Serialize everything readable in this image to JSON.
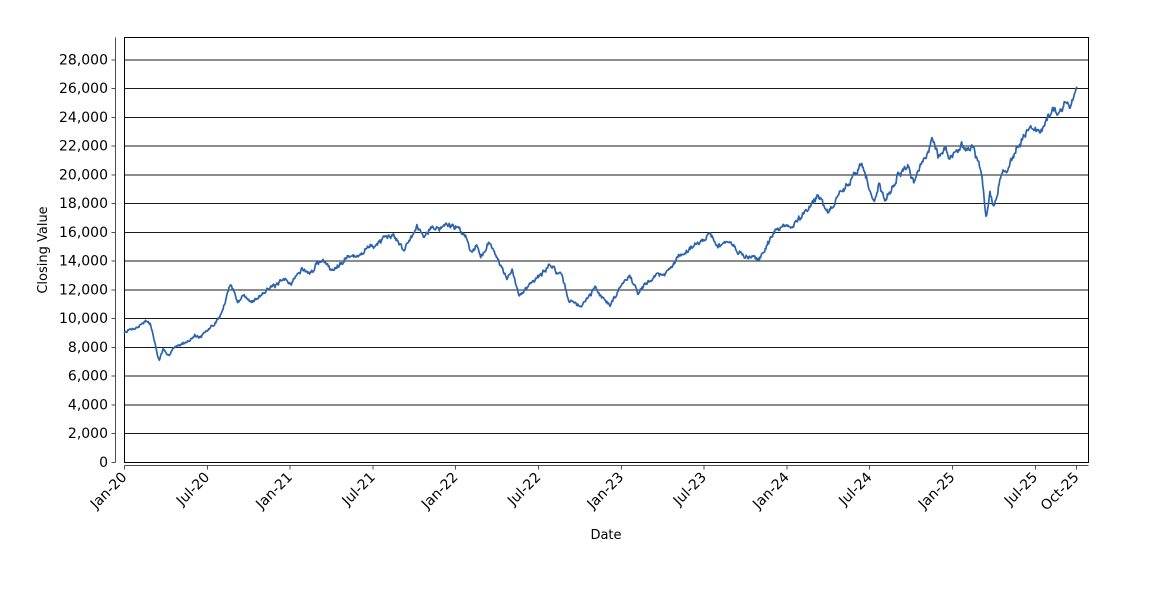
{
  "chart_data": {
    "type": "line",
    "xlabel": "Date",
    "ylabel": "Closing Value",
    "legend": "none",
    "grid": "horizontal-only",
    "background": "#ffffff",
    "plot_border_color": "#000000",
    "gridline_color": "#1a1a1a",
    "axis_line_color": "#4d4d4d",
    "x_tick_labels": [
      "Jan-20",
      "Jul-20",
      "Jan-21",
      "Jul-21",
      "Jan-22",
      "Jul-22",
      "Jan-23",
      "Jul-23",
      "Jan-24",
      "Jul-24",
      "Jan-25",
      "Jul-25",
      "Oct-25"
    ],
    "x_tick_months": [
      0,
      6,
      12,
      18,
      24,
      30,
      36,
      42,
      48,
      54,
      60,
      66,
      69
    ],
    "y_tick_values": [
      0,
      2000,
      4000,
      6000,
      8000,
      10000,
      12000,
      14000,
      16000,
      18000,
      20000,
      22000,
      24000,
      26000,
      28000
    ],
    "y_tick_labels": [
      "0",
      "2,000",
      "4,000",
      "6,000",
      "8,000",
      "10,000",
      "12,000",
      "14,000",
      "16,000",
      "18,000",
      "20,000",
      "22,000",
      "24,000",
      "26,000",
      "28,000"
    ],
    "ylim": [
      0,
      29560
    ],
    "xlim_months": [
      0,
      69.9
    ],
    "series": [
      {
        "name": "Closing Value",
        "color": "#2C63AD",
        "keypoints_month_value": [
          [
            0,
            9050
          ],
          [
            0.5,
            9200
          ],
          [
            1,
            9400
          ],
          [
            1.5,
            9850
          ],
          [
            1.9,
            9500
          ],
          [
            2.15,
            8500
          ],
          [
            2.5,
            7050
          ],
          [
            2.8,
            7850
          ],
          [
            3.1,
            7300
          ],
          [
            3.5,
            7950
          ],
          [
            4,
            8250
          ],
          [
            4.6,
            8450
          ],
          [
            5.1,
            8800
          ],
          [
            5.5,
            8650
          ],
          [
            6,
            9150
          ],
          [
            6.6,
            9700
          ],
          [
            7,
            10350
          ],
          [
            7.4,
            11500
          ],
          [
            7.7,
            12550
          ],
          [
            8.2,
            11150
          ],
          [
            8.6,
            11700
          ],
          [
            9.1,
            11150
          ],
          [
            9.6,
            11450
          ],
          [
            10.3,
            12150
          ],
          [
            11,
            12300
          ],
          [
            11.6,
            12750
          ],
          [
            12.1,
            12550
          ],
          [
            12.9,
            13500
          ],
          [
            13.4,
            13100
          ],
          [
            14.3,
            14200
          ],
          [
            15,
            13400
          ],
          [
            15.6,
            13950
          ],
          [
            16.2,
            14400
          ],
          [
            16.8,
            14250
          ],
          [
            17.5,
            14950
          ],
          [
            18.3,
            15250
          ],
          [
            19,
            15450
          ],
          [
            19.6,
            15700
          ],
          [
            20.3,
            14850
          ],
          [
            21.2,
            16450
          ],
          [
            21.7,
            15900
          ],
          [
            22.3,
            16500
          ],
          [
            22.8,
            16250
          ],
          [
            23.4,
            16550
          ],
          [
            24,
            16400
          ],
          [
            24.6,
            15950
          ],
          [
            25.1,
            14750
          ],
          [
            25.5,
            15100
          ],
          [
            25.8,
            14450
          ],
          [
            26.4,
            15350
          ],
          [
            27.1,
            14200
          ],
          [
            27.7,
            12850
          ],
          [
            28.1,
            13280
          ],
          [
            28.6,
            11450
          ],
          [
            29.4,
            12470
          ],
          [
            30.2,
            13100
          ],
          [
            30.8,
            13860
          ],
          [
            31.7,
            12820
          ],
          [
            32.2,
            11310
          ],
          [
            33,
            10900
          ],
          [
            33.6,
            11500
          ],
          [
            34.1,
            12290
          ],
          [
            34.6,
            11600
          ],
          [
            35.2,
            10960
          ],
          [
            36.2,
            12700
          ],
          [
            36.6,
            12930
          ],
          [
            37.2,
            11780
          ],
          [
            38.4,
            13050
          ],
          [
            39.2,
            13100
          ],
          [
            40.3,
            14440
          ],
          [
            41.8,
            15490
          ],
          [
            42.3,
            15945
          ],
          [
            43,
            15140
          ],
          [
            43.8,
            15350
          ],
          [
            44.5,
            14600
          ],
          [
            45.2,
            14150
          ],
          [
            45.6,
            14400
          ],
          [
            45.9,
            14100
          ],
          [
            46.6,
            15300
          ],
          [
            47.2,
            16175
          ],
          [
            48,
            16550
          ],
          [
            48.4,
            16300
          ],
          [
            49.2,
            17400
          ],
          [
            50.2,
            18450
          ],
          [
            51,
            17450
          ],
          [
            52,
            18800
          ],
          [
            53.4,
            20800
          ],
          [
            54.3,
            18200
          ],
          [
            54.7,
            19650
          ],
          [
            55.1,
            18300
          ],
          [
            56,
            19900
          ],
          [
            56.8,
            20580
          ],
          [
            57.2,
            19450
          ],
          [
            57.9,
            20925
          ],
          [
            58.6,
            22300
          ],
          [
            59,
            21270
          ],
          [
            59.5,
            22085
          ],
          [
            59.8,
            21100
          ],
          [
            60.3,
            21600
          ],
          [
            60.7,
            22200
          ],
          [
            61,
            21750
          ],
          [
            61.4,
            22100
          ],
          [
            61.8,
            20900
          ],
          [
            62.1,
            20300
          ],
          [
            62.45,
            17100
          ],
          [
            62.7,
            18900
          ],
          [
            63,
            17950
          ],
          [
            63.5,
            19900
          ],
          [
            64,
            20400
          ],
          [
            64.6,
            21740
          ],
          [
            65.2,
            22900
          ],
          [
            65.8,
            23000
          ],
          [
            66.4,
            23150
          ],
          [
            67.2,
            24500
          ],
          [
            67.7,
            24050
          ],
          [
            68.2,
            25100
          ],
          [
            68.5,
            24800
          ],
          [
            69,
            26150
          ]
        ]
      }
    ]
  }
}
